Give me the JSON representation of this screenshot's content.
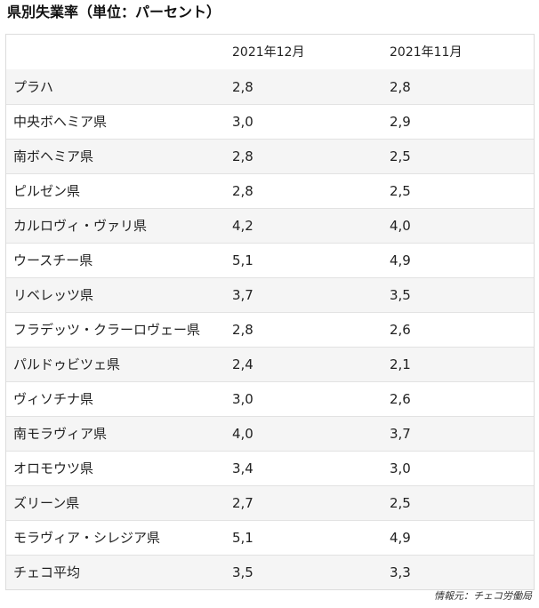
{
  "title": "県別失業率（単位：パーセント）",
  "table": {
    "columns": [
      "",
      "2021年12月",
      "2021年11月"
    ],
    "rows": [
      {
        "name": "プラハ",
        "dec": "2,8",
        "nov": "2,8"
      },
      {
        "name": "中央ボヘミア県",
        "dec": "3,0",
        "nov": "2,9"
      },
      {
        "name": "南ボヘミア県",
        "dec": "2,8",
        "nov": "2,5"
      },
      {
        "name": "ピルゼン県",
        "dec": "2,8",
        "nov": "2,5"
      },
      {
        "name": "カルロヴィ・ヴァリ県",
        "dec": "4,2",
        "nov": "4,0"
      },
      {
        "name": "ウースチー県",
        "dec": "5,1",
        "nov": "4,9"
      },
      {
        "name": "リベレッツ県",
        "dec": "3,7",
        "nov": "3,5"
      },
      {
        "name": "フラデッツ・クラーロヴェー県",
        "dec": "2,8",
        "nov": "2,6"
      },
      {
        "name": "パルドゥビツェ県",
        "dec": "2,4",
        "nov": "2,1"
      },
      {
        "name": "ヴィソチナ県",
        "dec": "3,0",
        "nov": "2,6"
      },
      {
        "name": "南モラヴィア県",
        "dec": "4,0",
        "nov": "3,7"
      },
      {
        "name": "オロモウツ県",
        "dec": "3,4",
        "nov": "3,0"
      },
      {
        "name": "ズリーン県",
        "dec": "2,7",
        "nov": "2,5"
      },
      {
        "name": "モラヴィア・シレジア県",
        "dec": "5,1",
        "nov": "4,9"
      },
      {
        "name": "チェコ平均",
        "dec": "3,5",
        "nov": "3,3"
      }
    ]
  },
  "source": "情報元：チェコ労働局"
}
